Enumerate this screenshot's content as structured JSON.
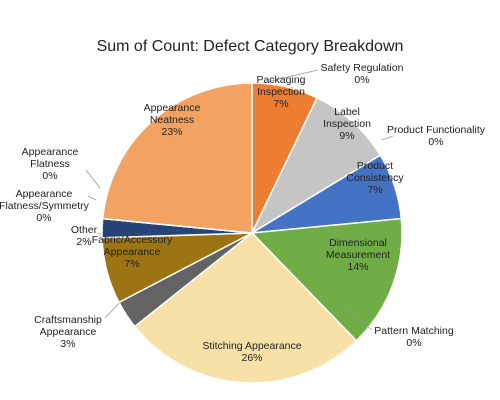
{
  "chart_data": {
    "type": "pie",
    "title": "Sum of Count: Defect Category Breakdown",
    "categories": [
      "Safety Regulation",
      "Packaging Inspection",
      "Label Inspection",
      "Product Functionality",
      "Product Consistency",
      "Dimensional Measurement",
      "Pattern Matching",
      "Stitching Appearance",
      "Craftsmanship Appearance",
      "Fabric/Accessory Appearance",
      "Other",
      "Appearance Flatness/Symmetry",
      "Appearance Flatness",
      "Appearance Neatness"
    ],
    "values": [
      0,
      7,
      9,
      0,
      7,
      14,
      0,
      26,
      3,
      7,
      2,
      0,
      0,
      23
    ],
    "value_labels": [
      "0%",
      "7%",
      "9%",
      "0%",
      "7%",
      "14%",
      "0%",
      "26%",
      "3%",
      "7%",
      "2%",
      "0%",
      "0%",
      "23%"
    ],
    "colors": [
      "#5b9bd5",
      "#ed7d31",
      "#c5c5c5",
      "#ffc000",
      "#4472c4",
      "#70ad47",
      "#255e91",
      "#f8e1a6",
      "#636363",
      "#9c7412",
      "#264478",
      "#7cb4e4",
      "#a9d18e",
      "#f4a261"
    ]
  }
}
